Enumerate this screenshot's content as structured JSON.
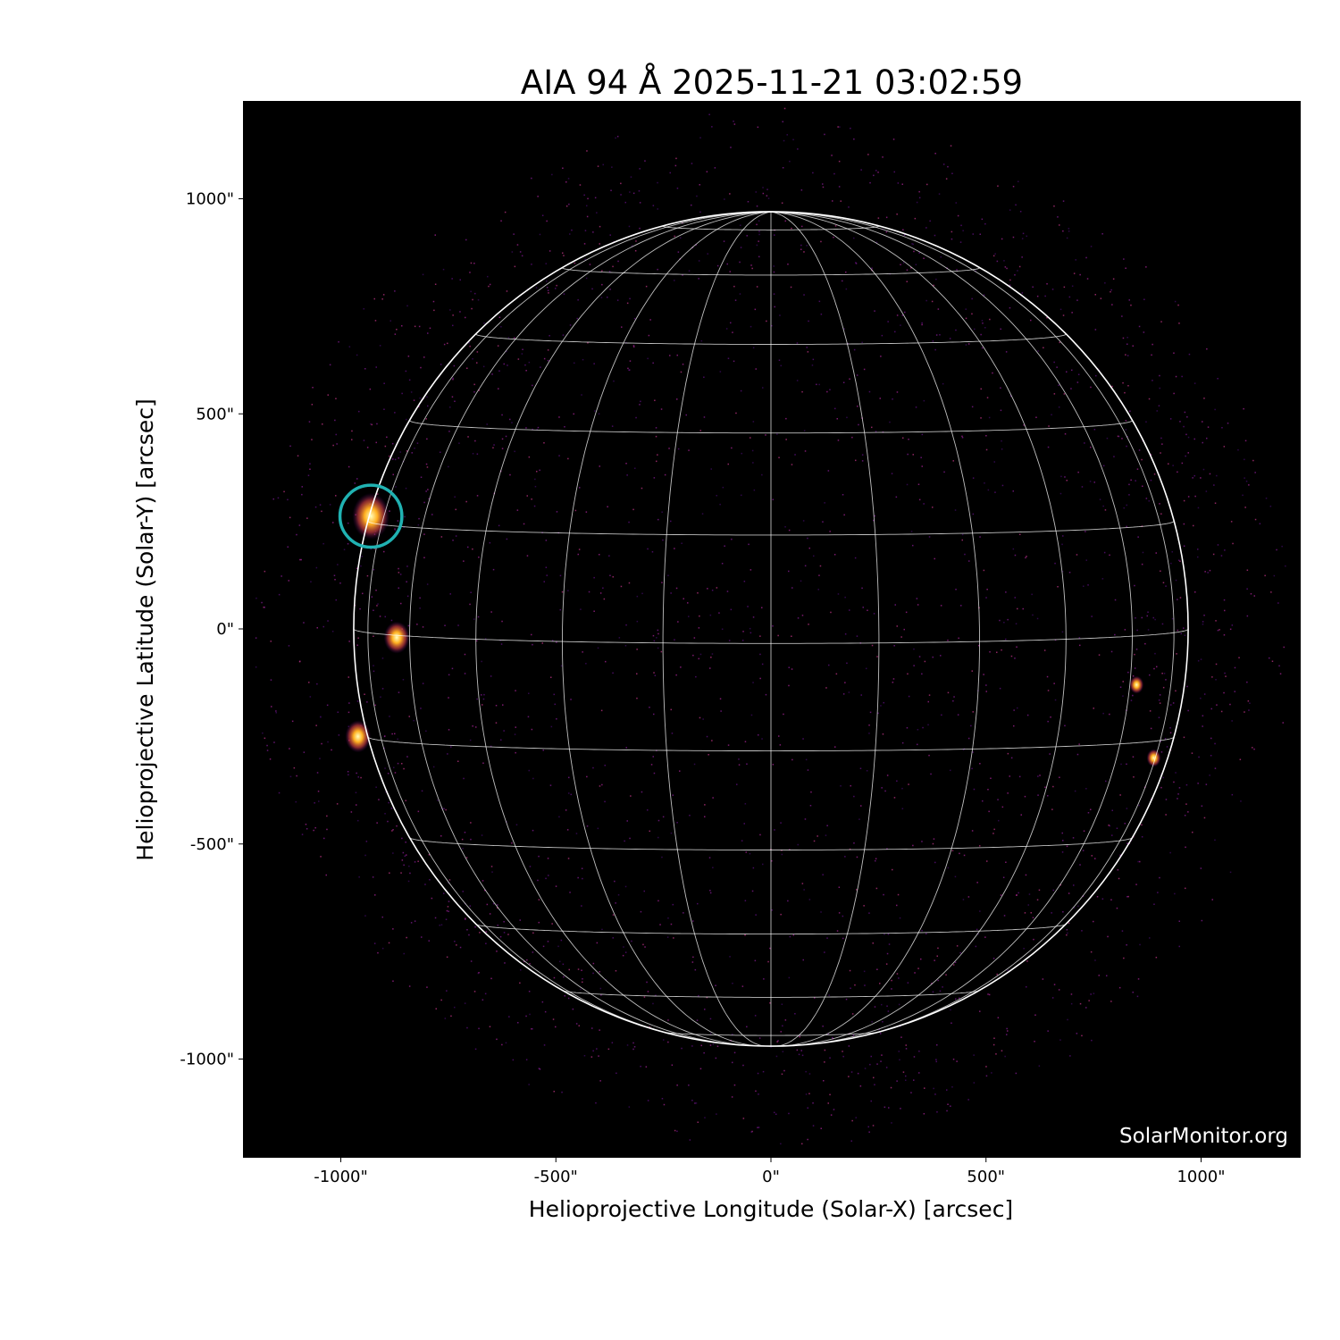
{
  "chart_data": {
    "type": "image",
    "title": "AIA 94 Å 2025-11-21 03:02:59",
    "xlabel": "Helioprojective Longitude (Solar-X) [arcsec]",
    "ylabel": "Helioprojective Latitude (Solar-Y) [arcsec]",
    "xlim": [
      -1230,
      1230
    ],
    "ylim": [
      -1230,
      1230
    ],
    "x_ticks": [
      -1000,
      -500,
      0,
      500,
      1000
    ],
    "y_ticks": [
      -1000,
      -500,
      0,
      500,
      1000
    ],
    "x_tick_labels": [
      "-1000\"",
      "-500\"",
      "0\"",
      "500\"",
      "1000\""
    ],
    "y_tick_labels": [
      "-1000\"",
      "-500\"",
      "0\"",
      "500\"",
      "1000\""
    ],
    "solar_radius_arcsec": 970,
    "grid": {
      "lat_spacing_deg": 15,
      "lon_spacing_deg": 15,
      "b0_deg": 2,
      "color": "#ffffff"
    },
    "limb_color": "#ffffff",
    "colormap": "sdoaia94",
    "background": "#000000",
    "marker": {
      "x": -930,
      "y": 262,
      "radius_arcsec": 72,
      "color": "#20b2b2"
    },
    "bright_regions": [
      {
        "x": -930,
        "y": 262
      },
      {
        "x": -870,
        "y": -20
      },
      {
        "x": -960,
        "y": -250
      },
      {
        "x": 850,
        "y": -130
      },
      {
        "x": 890,
        "y": -300
      }
    ],
    "watermark": "SolarMonitor.org"
  }
}
